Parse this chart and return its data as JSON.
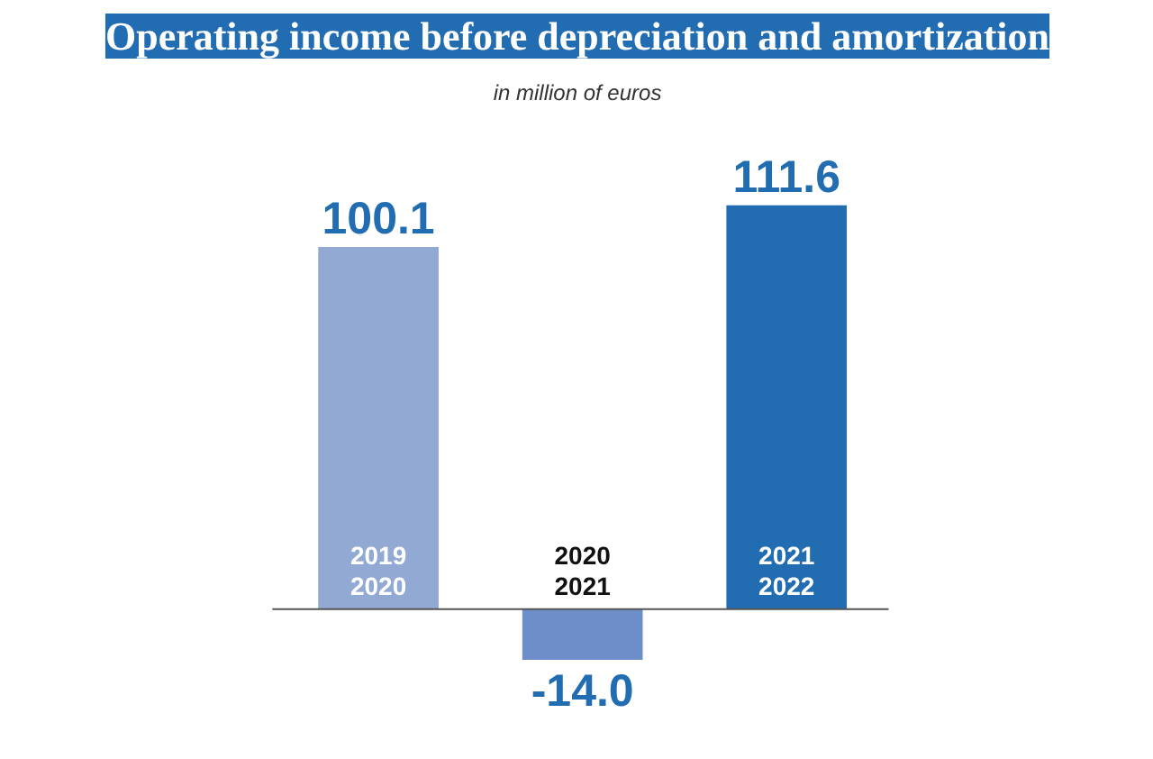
{
  "chart_data": {
    "type": "bar",
    "title": "Operating income before depreciation and amortization",
    "subtitle": "in million of euros",
    "categories": [
      "2019\n2020",
      "2020\n2021",
      "2021\n2022"
    ],
    "values": [
      100.1,
      -14.0,
      111.6
    ],
    "colors": [
      "#92a9d3",
      "#6d8ec9",
      "#226cb2"
    ],
    "value_labels": [
      "100.1",
      "-14.0",
      "111.6"
    ],
    "grid": false
  }
}
